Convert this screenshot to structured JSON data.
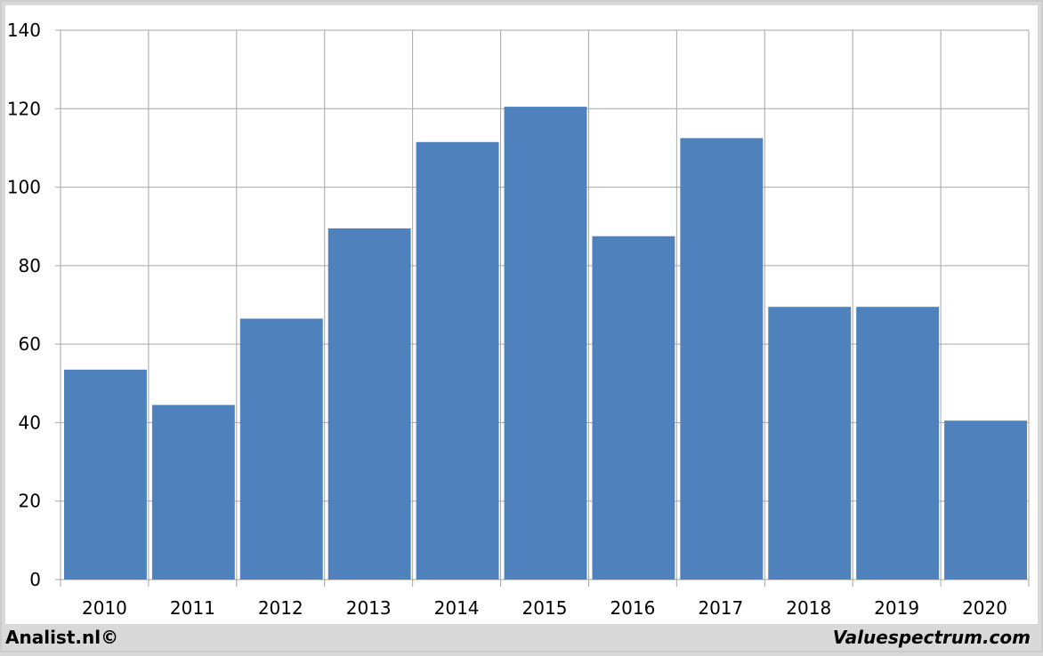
{
  "chart_data": {
    "type": "bar",
    "categories": [
      "2010",
      "2011",
      "2012",
      "2013",
      "2014",
      "2015",
      "2016",
      "2017",
      "2018",
      "2019",
      "2020"
    ],
    "values": [
      53.5,
      44.5,
      66.5,
      89.5,
      111.5,
      120.5,
      87.5,
      112.5,
      69.5,
      69.5,
      40.5
    ],
    "color": "#4f81bd",
    "ylim": [
      0,
      140
    ],
    "yticks": [
      0,
      20,
      40,
      60,
      80,
      100,
      120,
      140
    ],
    "grid": true
  },
  "footer": {
    "left": "Analist.nl©",
    "right": "Valuespectrum.com"
  }
}
